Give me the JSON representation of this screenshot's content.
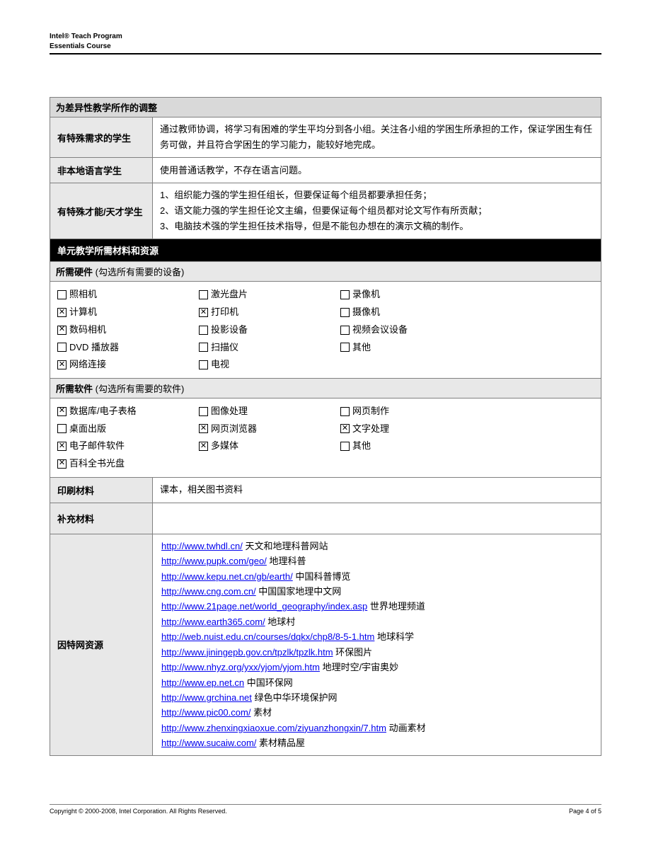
{
  "header": {
    "line1": "Intel® Teach Program",
    "line2": "Essentials Course"
  },
  "colors": {
    "border": "#808080",
    "gray_bg": "#d9d9d9",
    "light_gray_bg": "#e8e8e8",
    "black_bg": "#000000",
    "link": "#0000ee"
  },
  "section1": {
    "title": "为差异性教学所作的调整",
    "rows": [
      {
        "label": "有特殊需求的学生",
        "content": "通过教师协调，将学习有困难的学生平均分到各小组。关注各小组的学困生所承担的工作，保证学困生有任务可做，并且符合学困生的学习能力，能较好地完成。"
      },
      {
        "label": "非本地语言学生",
        "content": "使用普通话教学，不存在语言问题。"
      },
      {
        "label": "有特殊才能/天才学生",
        "content_lines": [
          "1、组织能力强的学生担任组长，但要保证每个组员都要承担任务；",
          "2、语文能力强的学生担任论文主编，但要保证每个组员都对论文写作有所贡献；",
          "3、电脑技术强的学生担任技术指导，但是不能包办想在的演示文稿的制作。"
        ]
      }
    ]
  },
  "section2": {
    "title": "单元教学所需材料和资源"
  },
  "hardware": {
    "title": "所需硬件",
    "note": " (勾选所有需要的设备)",
    "items": [
      {
        "label": "照相机",
        "checked": false
      },
      {
        "label": "激光盘片",
        "checked": false
      },
      {
        "label": "录像机",
        "checked": false
      },
      {
        "label": "计算机",
        "checked": true
      },
      {
        "label": "打印机",
        "checked": true
      },
      {
        "label": "摄像机",
        "checked": false
      },
      {
        "label": "数码相机",
        "checked": true
      },
      {
        "label": "投影设备",
        "checked": false
      },
      {
        "label": "视频会议设备",
        "checked": false
      },
      {
        "label": "DVD 播放器",
        "checked": false
      },
      {
        "label": "扫描仪",
        "checked": false
      },
      {
        "label": "其他",
        "checked": false
      },
      {
        "label": "网络连接",
        "checked": true
      },
      {
        "label": "电视",
        "checked": false
      }
    ]
  },
  "software": {
    "title": "所需软件",
    "note": " (勾选所有需要的软件)",
    "items": [
      {
        "label": "数据库/电子表格",
        "checked": true
      },
      {
        "label": "图像处理",
        "checked": false
      },
      {
        "label": "网页制作",
        "checked": false
      },
      {
        "label": "桌面出版",
        "checked": false
      },
      {
        "label": "网页浏览器",
        "checked": true
      },
      {
        "label": "文字处理",
        "checked": true
      },
      {
        "label": "电子邮件软件",
        "checked": true
      },
      {
        "label": "多媒体",
        "checked": true
      },
      {
        "label": "其他",
        "checked": false
      },
      {
        "label": "百科全书光盘",
        "checked": true
      }
    ]
  },
  "print_materials": {
    "label": "印刷材料",
    "content": "课本，相关图书资料"
  },
  "supplementary": {
    "label": "补充材料",
    "content": ""
  },
  "internet": {
    "label": "因特网资源",
    "links": [
      {
        "url": "http://www.twhdl.cn/",
        "desc": "天文和地理科普网站",
        "sep": "  "
      },
      {
        "url": "http://www.pupk.com/geo/",
        "desc": "地理科普",
        "sep": "   "
      },
      {
        "url": "http://www.kepu.net.cn/gb/earth/",
        "desc": "中国科普博览",
        "sep": "   "
      },
      {
        "url": "http://www.cng.com.cn/",
        "desc": "中国国家地理中文网",
        "sep": "  "
      },
      {
        "url": "http://www.21page.net/world_geography/index.asp",
        "desc": "世界地理频道",
        "sep": "   "
      },
      {
        "url": "http://www.earth365.com/",
        "desc": "地球村",
        "sep": "   "
      },
      {
        "url": "http://web.nuist.edu.cn/courses/dqkx/chp8/8-5-1.htm",
        "desc": "地球科学",
        "sep": "    "
      },
      {
        "url": "http://www.jiningepb.gov.cn/tpzlk/tpzlk.htm",
        "desc": "环保图片",
        "sep": "     "
      },
      {
        "url": "http://www.nhyz.org/yxx/yjom/yjom.htm",
        "desc": "地理时空/宇宙奥妙",
        "sep": "  "
      },
      {
        "url": "http://www.ep.net.cn",
        "desc": "中国环保网",
        "sep": "   "
      },
      {
        "url": "http://www.grchina.net",
        "desc": "绿色中华环境保护网",
        "sep": "    "
      },
      {
        "url": "http://www.pic00.com/",
        "desc": "素材",
        "sep": "    "
      },
      {
        "url": "http://www.zhenxingxiaoxue.com/ziyuanzhongxin/7.htm",
        "desc": "动画素材",
        "sep": "     "
      },
      {
        "url": "http://www.sucaiw.com/",
        "desc": "素材精品屋",
        "sep": "      "
      }
    ]
  },
  "footer": {
    "left": "Copyright © 2000-2008, Intel Corporation. All Rights Reserved.",
    "right": "Page 4 of 5"
  }
}
